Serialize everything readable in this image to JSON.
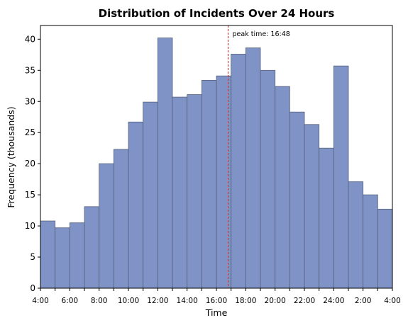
{
  "chart_data": {
    "type": "bar",
    "title": "Distribution of Incidents Over 24 Hours",
    "xlabel": "Time",
    "ylabel": "Frequency (thousands)",
    "x_range_hours": [
      4,
      28
    ],
    "ylim": [
      0,
      42.2
    ],
    "yticks": [
      0,
      5,
      10,
      15,
      20,
      25,
      30,
      35,
      40
    ],
    "xtick_labels": [
      "4:00",
      "6:00",
      "8:00",
      "10:00",
      "12:00",
      "14:00",
      "16:00",
      "18:00",
      "20:00",
      "22:00",
      "24:00",
      "2:00",
      "4:00"
    ],
    "xtick_hours": [
      4,
      6,
      8,
      10,
      12,
      14,
      16,
      18,
      20,
      22,
      24,
      26,
      28
    ],
    "bin_start_hours": [
      4,
      5,
      6,
      7,
      8,
      9,
      10,
      11,
      12,
      13,
      14,
      15,
      16,
      17,
      18,
      19,
      20,
      21,
      22,
      23,
      24,
      25,
      26,
      27
    ],
    "bin_width_hours": 1,
    "values": [
      10.8,
      9.7,
      10.5,
      13.1,
      20.0,
      22.3,
      26.7,
      29.9,
      40.2,
      30.7,
      31.1,
      33.4,
      34.1,
      37.6,
      38.6,
      35.0,
      32.4,
      28.3,
      26.3,
      22.5,
      35.7,
      17.1,
      15.0,
      12.7
    ],
    "bar_color": "#7f93c6",
    "bar_edge_color": "#55607a",
    "grid": false,
    "annotation": {
      "text": "peak time: 16:48",
      "x_hour": 16.8,
      "line_color": "#d62728",
      "line_style": "dashed"
    }
  }
}
